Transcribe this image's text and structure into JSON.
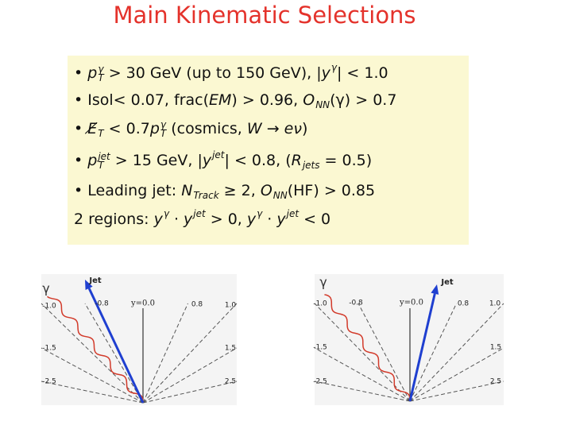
{
  "title": "Main Kinematic Selections",
  "bullets": [
    [
      {
        "it": "p",
        "sup": "γ",
        "sub": "T"
      },
      " > 30 GeV (up to 150 GeV), |",
      {
        "it": "y",
        "sup": "γ"
      },
      "| < 1.0"
    ],
    [
      "Isol< 0.07, frac(",
      {
        "it": "EM"
      },
      ") > 0.96, ",
      {
        "it": "O",
        "sub": "NN"
      },
      "(γ) > 0.7"
    ],
    [
      {
        "it": "E̸",
        "sub": "T"
      },
      " < 0.7",
      {
        "it": "p",
        "sup": "γ",
        "sub": "T"
      },
      " (cosmics, ",
      {
        "it": "W"
      },
      " → ",
      {
        "it": "eν"
      },
      ")"
    ],
    [
      {
        "it": "p",
        "sup": "jet",
        "sub": "T"
      },
      " > 15 GeV, |",
      {
        "it": "y",
        "sup": "jet"
      },
      "| < 0.8, (",
      {
        "it": "R",
        "sub": "jets"
      },
      " = 0.5)"
    ],
    [
      "Leading jet: ",
      {
        "it": "N",
        "sub": "Track"
      },
      " ≥ 2, ",
      {
        "it": "O",
        "sub": "NN"
      },
      "(HF) > 0.85"
    ]
  ],
  "regions": [
    "2 regions: ",
    {
      "it": "y",
      "sup": "γ"
    },
    " · ",
    {
      "it": "y",
      "sup": "jet"
    },
    " > 0, ",
    {
      "it": "y",
      "sup": "γ"
    },
    " · ",
    {
      "it": "y",
      "sup": "jet"
    },
    " < 0"
  ],
  "diagrams": [
    {
      "labels": [
        "γ",
        "Jet",
        "-1.0",
        "-0.8",
        "y=0.0",
        "0.8",
        "1.0",
        "-1.5",
        "1.5",
        "-2.5",
        "2.5"
      ]
    },
    {
      "labels": [
        "γ",
        "Jet",
        "-1.0",
        "-0.8",
        "y=0.0",
        "0.8",
        "1.0",
        "-1.5",
        "1.5",
        "-2.5",
        "2.5"
      ]
    }
  ]
}
